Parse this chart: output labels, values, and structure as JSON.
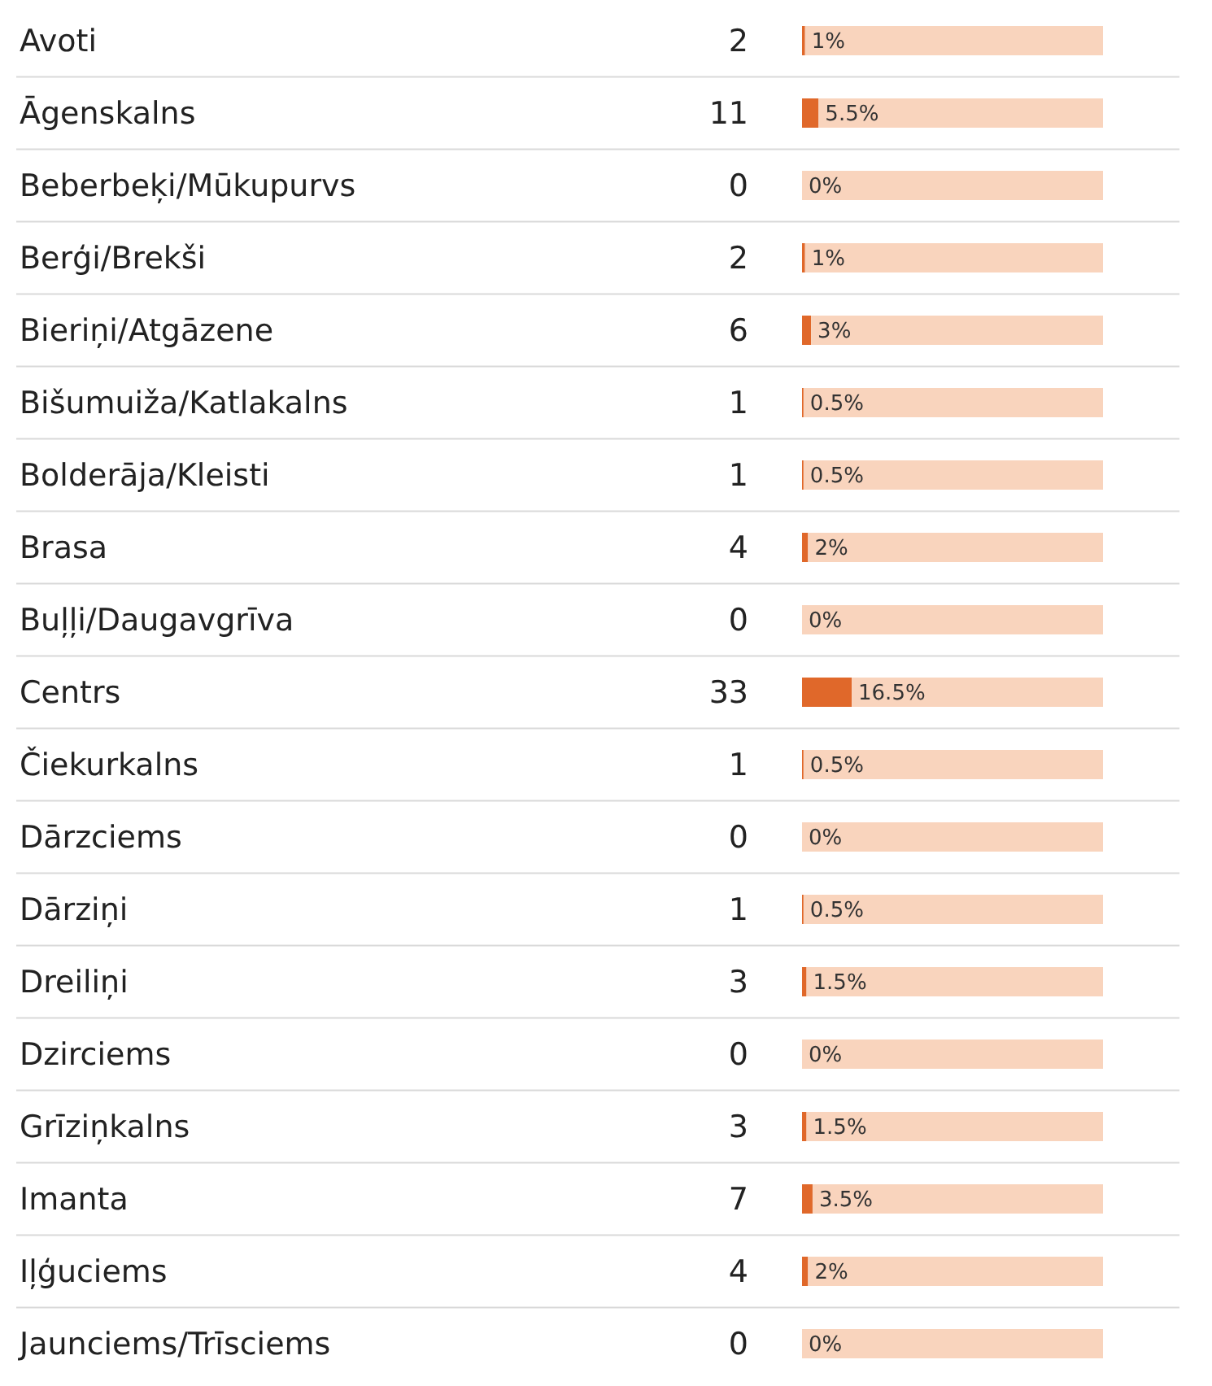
{
  "chart_data": {
    "type": "bar",
    "orientation": "horizontal",
    "stacked": true,
    "xlim": [
      0,
      100
    ],
    "tick_labels": "y",
    "grid": "y",
    "categories": [
      "Avoti",
      "Āgenskalns",
      "Beberbeķi/Mūkupurvs",
      "Berģi/Brekši",
      "Bieriņi/Atgāzene",
      "Bišumuiža/Katlakalns",
      "Bolderāja/Kleisti",
      "Brasa",
      "Buļļi/Daugavgrīva",
      "Centrs",
      "Čiekurkalns",
      "Dārzciems",
      "Dārziņi",
      "Dreiliņi",
      "Dzirciems",
      "Grīziņkalns",
      "Imanta",
      "Iļģuciems",
      "Jaunciems/Trīsciems"
    ],
    "series": [
      {
        "color": "#e0682a",
        "values": [
          1,
          5.5,
          0,
          1,
          3,
          0.5,
          0.5,
          2,
          0,
          16.5,
          0.5,
          0,
          0.5,
          1.5,
          0,
          1.5,
          3.5,
          2,
          0
        ],
        "value_labels": [
          "1%",
          "5.5%",
          "0%",
          "1%",
          "3%",
          "0.5%",
          "0.5%",
          "2%",
          "0%",
          "16.5%",
          "0.5%",
          "0%",
          "0.5%",
          "1.5%",
          "0%",
          "1.5%",
          "3.5%",
          "2%",
          "0%"
        ]
      },
      {
        "color": "#f9d4bd",
        "values": [
          99,
          94.5,
          100,
          99,
          97,
          99.5,
          99.5,
          98,
          100,
          83.5,
          99.5,
          100,
          99.5,
          98.5,
          100,
          98.5,
          96.5,
          98,
          100
        ]
      }
    ],
    "annotations": [
      "2",
      "11",
      "0",
      "2",
      "6",
      "1",
      "1",
      "4",
      "0",
      "33",
      "1",
      "0",
      "1",
      "3",
      "0",
      "3",
      "7",
      "4",
      "0"
    ]
  }
}
